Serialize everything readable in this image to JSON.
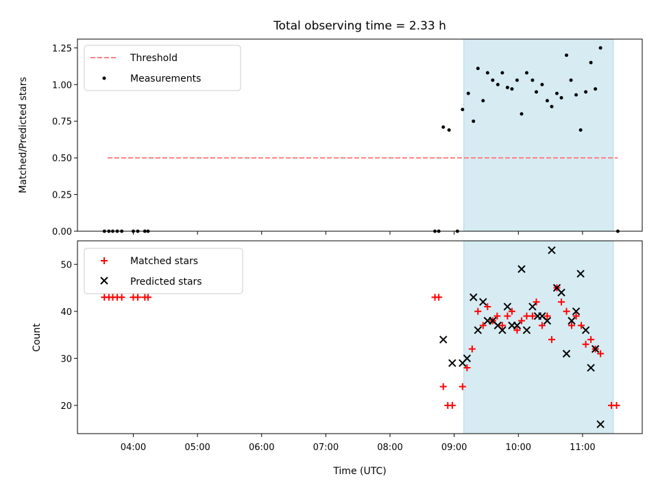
{
  "figure": {
    "title": "Total observing time = 2.33 h",
    "xlabel": "Time (UTC)",
    "x_ticks": [
      "04:00",
      "05:00",
      "06:00",
      "07:00",
      "08:00",
      "09:00",
      "10:00",
      "11:00"
    ]
  },
  "chart_data": [
    {
      "type": "scatter",
      "title": "Total observing time = 2.33 h",
      "xlabel": "",
      "ylabel": "Matched/Predicted stars",
      "x_unit": "hours UTC",
      "xlim": [
        3.13,
        11.93
      ],
      "ylim": [
        0,
        1.31
      ],
      "y_ticks": [
        "0.00",
        "0.25",
        "0.50",
        "0.75",
        "1.00",
        "1.25"
      ],
      "grid": false,
      "legend_position": "top-left",
      "shaded_region": {
        "x_start": 9.15,
        "x_end": 11.48,
        "color": "#add8e6"
      },
      "threshold": {
        "name": "Threshold",
        "value": 0.5,
        "x_start": 3.6,
        "x_end": 11.55,
        "color": "#ff7f7f"
      },
      "series": [
        {
          "name": "Measurements",
          "color": "#000000",
          "points": [
            [
              3.55,
              0
            ],
            [
              3.62,
              0
            ],
            [
              3.68,
              0
            ],
            [
              3.75,
              0
            ],
            [
              3.82,
              0
            ],
            [
              4.0,
              0
            ],
            [
              4.07,
              0
            ],
            [
              4.18,
              0
            ],
            [
              4.23,
              0
            ],
            [
              8.7,
              0
            ],
            [
              8.76,
              0
            ],
            [
              8.83,
              0.71
            ],
            [
              8.92,
              0.69
            ],
            [
              9.05,
              0
            ],
            [
              9.13,
              0.83
            ],
            [
              9.22,
              0.94
            ],
            [
              9.3,
              0.75
            ],
            [
              9.37,
              1.11
            ],
            [
              9.45,
              0.89
            ],
            [
              9.52,
              1.08
            ],
            [
              9.6,
              1.03
            ],
            [
              9.68,
              1.0
            ],
            [
              9.75,
              1.08
            ],
            [
              9.83,
              0.98
            ],
            [
              9.9,
              0.97
            ],
            [
              9.98,
              1.03
            ],
            [
              10.05,
              0.8
            ],
            [
              10.13,
              1.08
            ],
            [
              10.22,
              1.03
            ],
            [
              10.28,
              0.95
            ],
            [
              10.37,
              1.0
            ],
            [
              10.45,
              0.89
            ],
            [
              10.52,
              0.85
            ],
            [
              10.6,
              0.94
            ],
            [
              10.67,
              0.91
            ],
            [
              10.75,
              1.2
            ],
            [
              10.82,
              1.03
            ],
            [
              10.9,
              0.93
            ],
            [
              10.97,
              0.69
            ],
            [
              11.05,
              0.95
            ],
            [
              11.13,
              1.15
            ],
            [
              11.2,
              0.97
            ],
            [
              11.28,
              1.25
            ],
            [
              11.55,
              0
            ]
          ]
        }
      ]
    },
    {
      "type": "scatter",
      "xlabel": "Time (UTC)",
      "ylabel": "Count",
      "x_unit": "hours UTC",
      "xlim": [
        3.13,
        11.93
      ],
      "ylim": [
        14,
        55
      ],
      "y_ticks": [
        "20",
        "30",
        "40",
        "50"
      ],
      "grid": false,
      "legend_position": "top-left",
      "shaded_region": {
        "x_start": 9.15,
        "x_end": 11.48,
        "color": "#add8e6"
      },
      "series": [
        {
          "name": "Matched stars",
          "marker": "plus",
          "color": "#ff0000",
          "points": [
            [
              3.55,
              43
            ],
            [
              3.62,
              43
            ],
            [
              3.68,
              43
            ],
            [
              3.75,
              43
            ],
            [
              3.82,
              43
            ],
            [
              4.0,
              43
            ],
            [
              4.07,
              43
            ],
            [
              4.18,
              43
            ],
            [
              4.23,
              43
            ],
            [
              8.7,
              43
            ],
            [
              8.76,
              43
            ],
            [
              8.83,
              24
            ],
            [
              8.9,
              20
            ],
            [
              8.97,
              20
            ],
            [
              9.13,
              24
            ],
            [
              9.2,
              28
            ],
            [
              9.28,
              32
            ],
            [
              9.37,
              40
            ],
            [
              9.45,
              37
            ],
            [
              9.52,
              41
            ],
            [
              9.6,
              38
            ],
            [
              9.67,
              39
            ],
            [
              9.75,
              37
            ],
            [
              9.83,
              39
            ],
            [
              9.9,
              40
            ],
            [
              9.98,
              36
            ],
            [
              10.05,
              38
            ],
            [
              10.13,
              39
            ],
            [
              10.22,
              39
            ],
            [
              10.28,
              42
            ],
            [
              10.37,
              37
            ],
            [
              10.45,
              39
            ],
            [
              10.52,
              34
            ],
            [
              10.6,
              45
            ],
            [
              10.67,
              42
            ],
            [
              10.75,
              40
            ],
            [
              10.83,
              37
            ],
            [
              10.9,
              39
            ],
            [
              10.98,
              37
            ],
            [
              11.05,
              33
            ],
            [
              11.13,
              34
            ],
            [
              11.2,
              32
            ],
            [
              11.28,
              31
            ],
            [
              11.45,
              20
            ],
            [
              11.53,
              20
            ]
          ]
        },
        {
          "name": "Predicted stars",
          "marker": "x",
          "color": "#000000",
          "points": [
            [
              8.83,
              34
            ],
            [
              8.97,
              29
            ],
            [
              9.13,
              29
            ],
            [
              9.2,
              30
            ],
            [
              9.3,
              43
            ],
            [
              9.37,
              36
            ],
            [
              9.45,
              42
            ],
            [
              9.52,
              38
            ],
            [
              9.6,
              38
            ],
            [
              9.68,
              37
            ],
            [
              9.75,
              36
            ],
            [
              9.83,
              41
            ],
            [
              9.9,
              37
            ],
            [
              9.98,
              37
            ],
            [
              10.05,
              49
            ],
            [
              10.13,
              36
            ],
            [
              10.22,
              41
            ],
            [
              10.3,
              39
            ],
            [
              10.37,
              39
            ],
            [
              10.45,
              38
            ],
            [
              10.52,
              53
            ],
            [
              10.6,
              45
            ],
            [
              10.67,
              44
            ],
            [
              10.75,
              31
            ],
            [
              10.83,
              38
            ],
            [
              10.9,
              40
            ],
            [
              10.97,
              48
            ],
            [
              11.05,
              36
            ],
            [
              11.13,
              28
            ],
            [
              11.2,
              32
            ],
            [
              11.28,
              16
            ]
          ]
        }
      ]
    }
  ]
}
